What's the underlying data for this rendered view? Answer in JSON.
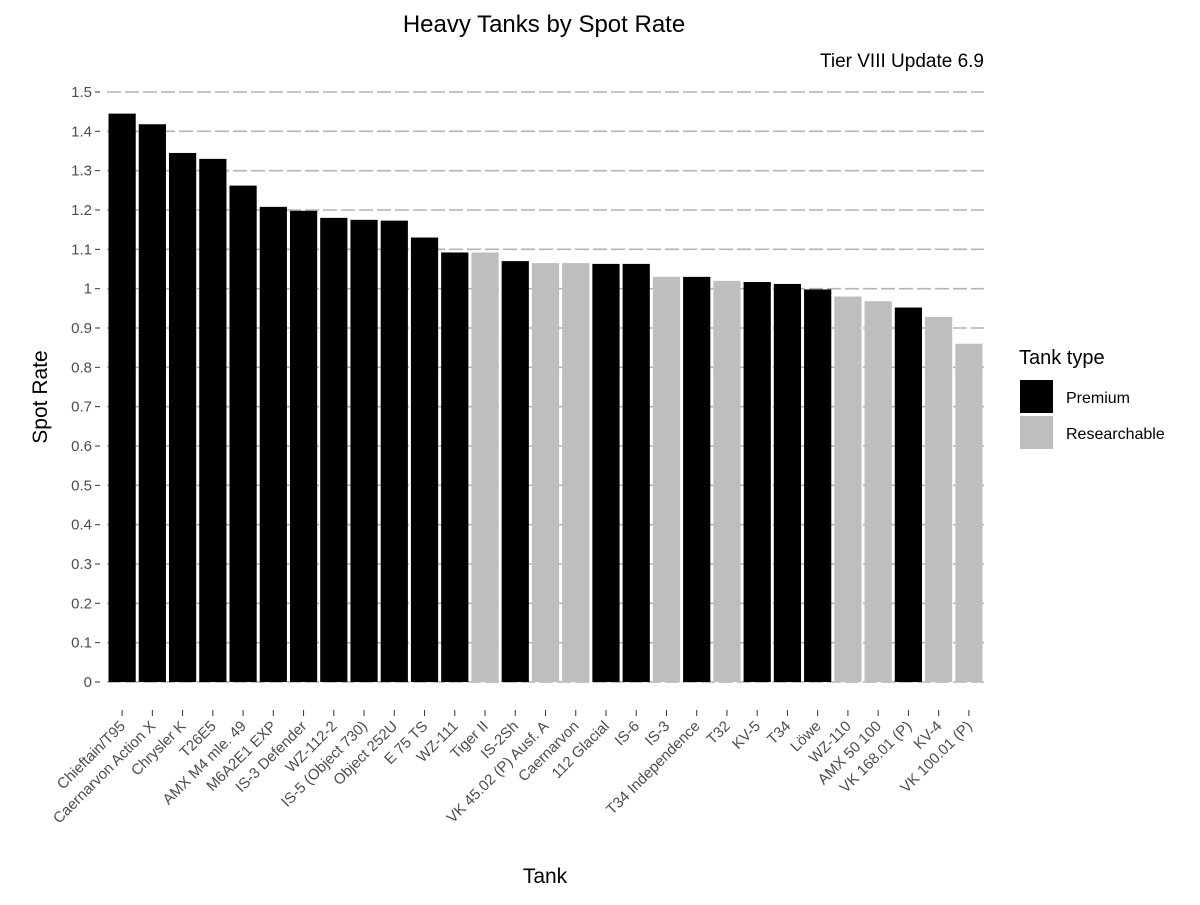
{
  "chart_data": {
    "type": "bar",
    "title": "Heavy Tanks by Spot Rate",
    "subtitle": "Tier VIII Update 6.9",
    "xlabel": "Tank",
    "ylabel": "Spot Rate",
    "ylim": [
      0,
      1.5
    ],
    "yticks": [
      "0",
      "0.1",
      "0.2",
      "0.3",
      "0.4",
      "0.5",
      "0.6",
      "0.7",
      "0.8",
      "0.9",
      "1",
      "1.1",
      "1.2",
      "1.3",
      "1.4",
      "1.5"
    ],
    "grid": "horizontal dashed",
    "legend": {
      "title": "Tank type",
      "position": "right",
      "entries": [
        {
          "label": "Premium",
          "color": "#000000"
        },
        {
          "label": "Researchable",
          "color": "#bebebe"
        }
      ]
    },
    "categories": [
      "Chieftain/T95",
      "Caernarvon Action X",
      "Chrysler K",
      "T26E5",
      "AMX M4 mle. 49",
      "M6A2E1 EXP",
      "IS-3 Defender",
      "WZ-112-2",
      "IS-5 (Object 730)",
      "Object 252U",
      "E 75 TS",
      "WZ-111",
      "Tiger II",
      "IS-2Sh",
      "VK 45.02 (P) Ausf. A",
      "Caernarvon",
      "112 Glacial",
      "IS-6",
      "IS-3",
      "T34 Independence",
      "T32",
      "KV-5",
      "T34",
      "Löwe",
      "WZ-110",
      "AMX 50 100",
      "VK 168.01 (P)",
      "KV-4",
      "VK 100.01 (P)"
    ],
    "values": [
      1.445,
      1.418,
      1.345,
      1.33,
      1.262,
      1.208,
      1.198,
      1.18,
      1.175,
      1.173,
      1.13,
      1.092,
      1.092,
      1.07,
      1.065,
      1.065,
      1.063,
      1.063,
      1.03,
      1.03,
      1.02,
      1.017,
      1.012,
      0.998,
      0.98,
      0.968,
      0.952,
      0.928,
      0.86
    ],
    "types": [
      "Premium",
      "Premium",
      "Premium",
      "Premium",
      "Premium",
      "Premium",
      "Premium",
      "Premium",
      "Premium",
      "Premium",
      "Premium",
      "Premium",
      "Researchable",
      "Premium",
      "Researchable",
      "Researchable",
      "Premium",
      "Premium",
      "Researchable",
      "Premium",
      "Researchable",
      "Premium",
      "Premium",
      "Premium",
      "Researchable",
      "Researchable",
      "Premium",
      "Researchable",
      "Researchable"
    ]
  }
}
